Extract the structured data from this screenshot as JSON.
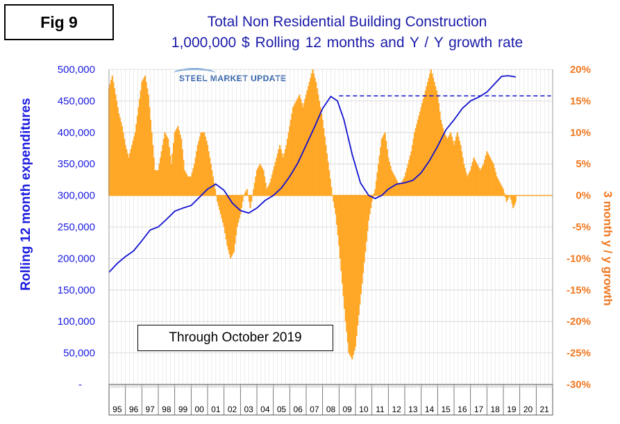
{
  "figure_label": "Fig 9",
  "title": "Total Non Residential Building Construction",
  "subtitle": "1,000,000 $    Rolling 12 months and Y / Y growth rate",
  "logo_text": "STEEL MARKET UPDATE",
  "annotation": "Through October 2019",
  "colors": {
    "line": "#1010d0",
    "bars": "#ffa726",
    "left_axis": "#1a1ae0",
    "right_axis": "#f07820"
  },
  "chart_data": {
    "type": "bar+line",
    "xlabel": "",
    "ylabel_left": "Rolling 12 month expenditures",
    "ylabel_right": "3 month y / y growth",
    "ylim_left": [
      0,
      500000
    ],
    "ylim_right": [
      -30,
      20
    ],
    "left_ticks": [
      "-",
      "50,000",
      "100,000",
      "150,000",
      "200,000",
      "250,000",
      "300,000",
      "350,000",
      "400,000",
      "450,000",
      "500,000"
    ],
    "right_ticks": [
      "-30%",
      "-25%",
      "-20%",
      "-15%",
      "-10%",
      "-5%",
      "0%",
      "5%",
      "10%",
      "15%",
      "20%"
    ],
    "x_categories": [
      "95",
      "96",
      "97",
      "98",
      "99",
      "00",
      "01",
      "02",
      "03",
      "04",
      "05",
      "06",
      "07",
      "08",
      "09",
      "10",
      "11",
      "12",
      "13",
      "14",
      "15",
      "16",
      "17",
      "18",
      "19",
      "20",
      "21"
    ],
    "grid": true,
    "reference_line": {
      "y": 458000,
      "from_year": 2009.0,
      "to_year": 2021.9,
      "style": "dashed"
    },
    "line_series": {
      "name": "Rolling 12 month expenditures",
      "points": [
        [
          1995.0,
          178000
        ],
        [
          1995.5,
          192000
        ],
        [
          1996.0,
          203000
        ],
        [
          1996.5,
          212000
        ],
        [
          1997.0,
          228000
        ],
        [
          1997.5,
          245000
        ],
        [
          1998.0,
          250000
        ],
        [
          1998.5,
          262000
        ],
        [
          1999.0,
          275000
        ],
        [
          1999.5,
          280000
        ],
        [
          2000.0,
          284000
        ],
        [
          2000.5,
          297000
        ],
        [
          2001.0,
          310000
        ],
        [
          2001.5,
          318000
        ],
        [
          2002.0,
          308000
        ],
        [
          2002.5,
          288000
        ],
        [
          2003.0,
          276000
        ],
        [
          2003.5,
          272000
        ],
        [
          2004.0,
          280000
        ],
        [
          2004.5,
          292000
        ],
        [
          2005.0,
          300000
        ],
        [
          2005.5,
          312000
        ],
        [
          2006.0,
          330000
        ],
        [
          2006.5,
          352000
        ],
        [
          2007.0,
          380000
        ],
        [
          2007.5,
          408000
        ],
        [
          2008.0,
          438000
        ],
        [
          2008.5,
          457000
        ],
        [
          2008.9,
          450000
        ],
        [
          2009.3,
          420000
        ],
        [
          2009.8,
          365000
        ],
        [
          2010.3,
          320000
        ],
        [
          2010.8,
          300000
        ],
        [
          2011.2,
          295000
        ],
        [
          2011.6,
          300000
        ],
        [
          2012.0,
          310000
        ],
        [
          2012.5,
          318000
        ],
        [
          2013.0,
          320000
        ],
        [
          2013.5,
          324000
        ],
        [
          2014.0,
          336000
        ],
        [
          2014.5,
          355000
        ],
        [
          2015.0,
          378000
        ],
        [
          2015.5,
          404000
        ],
        [
          2016.0,
          420000
        ],
        [
          2016.5,
          438000
        ],
        [
          2017.0,
          450000
        ],
        [
          2017.5,
          456000
        ],
        [
          2018.0,
          464000
        ],
        [
          2018.5,
          478000
        ],
        [
          2018.9,
          489000
        ],
        [
          2019.3,
          490000
        ],
        [
          2019.75,
          488000
        ]
      ]
    },
    "bar_series": {
      "name": "3 month y / y growth",
      "points": [
        [
          1995.0,
          17
        ],
        [
          1995.2,
          19
        ],
        [
          1995.4,
          16
        ],
        [
          1995.6,
          13
        ],
        [
          1995.8,
          11
        ],
        [
          1996.0,
          8
        ],
        [
          1996.2,
          6
        ],
        [
          1996.4,
          8
        ],
        [
          1996.6,
          10
        ],
        [
          1996.8,
          14
        ],
        [
          1997.0,
          18
        ],
        [
          1997.2,
          19
        ],
        [
          1997.4,
          16
        ],
        [
          1997.6,
          10
        ],
        [
          1997.8,
          4
        ],
        [
          1998.0,
          4
        ],
        [
          1998.2,
          7
        ],
        [
          1998.4,
          10
        ],
        [
          1998.6,
          9
        ],
        [
          1998.8,
          5
        ],
        [
          1999.0,
          10
        ],
        [
          1999.2,
          11
        ],
        [
          1999.4,
          9
        ],
        [
          1999.6,
          4
        ],
        [
          1999.8,
          3
        ],
        [
          2000.0,
          3
        ],
        [
          2000.2,
          5
        ],
        [
          2000.4,
          8
        ],
        [
          2000.6,
          10
        ],
        [
          2000.8,
          10
        ],
        [
          2001.0,
          8
        ],
        [
          2001.2,
          5
        ],
        [
          2001.4,
          2
        ],
        [
          2001.6,
          -1
        ],
        [
          2001.8,
          -3
        ],
        [
          2002.0,
          -5
        ],
        [
          2002.2,
          -8
        ],
        [
          2002.4,
          -10
        ],
        [
          2002.6,
          -9
        ],
        [
          2002.8,
          -5
        ],
        [
          2003.0,
          -3
        ],
        [
          2003.2,
          0
        ],
        [
          2003.4,
          1
        ],
        [
          2003.6,
          -2
        ],
        [
          2003.8,
          1
        ],
        [
          2004.0,
          4
        ],
        [
          2004.2,
          5
        ],
        [
          2004.4,
          4
        ],
        [
          2004.6,
          1
        ],
        [
          2004.8,
          2
        ],
        [
          2005.0,
          4
        ],
        [
          2005.2,
          6
        ],
        [
          2005.4,
          8
        ],
        [
          2005.6,
          6
        ],
        [
          2005.8,
          8
        ],
        [
          2006.0,
          11
        ],
        [
          2006.2,
          14
        ],
        [
          2006.4,
          15
        ],
        [
          2006.6,
          16
        ],
        [
          2006.8,
          14
        ],
        [
          2007.0,
          16
        ],
        [
          2007.2,
          18
        ],
        [
          2007.4,
          20
        ],
        [
          2007.6,
          18
        ],
        [
          2007.8,
          15
        ],
        [
          2008.0,
          12
        ],
        [
          2008.2,
          8
        ],
        [
          2008.4,
          4
        ],
        [
          2008.6,
          0
        ],
        [
          2008.8,
          -3
        ],
        [
          2009.0,
          -8
        ],
        [
          2009.2,
          -14
        ],
        [
          2009.4,
          -20
        ],
        [
          2009.6,
          -25
        ],
        [
          2009.8,
          -26
        ],
        [
          2010.0,
          -24
        ],
        [
          2010.2,
          -19
        ],
        [
          2010.4,
          -14
        ],
        [
          2010.6,
          -9
        ],
        [
          2010.8,
          -4
        ],
        [
          2011.0,
          -1
        ],
        [
          2011.2,
          1
        ],
        [
          2011.4,
          5
        ],
        [
          2011.6,
          9
        ],
        [
          2011.8,
          10
        ],
        [
          2012.0,
          6
        ],
        [
          2012.2,
          4
        ],
        [
          2012.4,
          3
        ],
        [
          2012.6,
          2
        ],
        [
          2012.8,
          2
        ],
        [
          2013.0,
          3
        ],
        [
          2013.2,
          5
        ],
        [
          2013.4,
          7
        ],
        [
          2013.6,
          10
        ],
        [
          2013.8,
          12
        ],
        [
          2014.0,
          14
        ],
        [
          2014.2,
          16
        ],
        [
          2014.4,
          18
        ],
        [
          2014.6,
          20
        ],
        [
          2014.8,
          18
        ],
        [
          2015.0,
          16
        ],
        [
          2015.2,
          12
        ],
        [
          2015.4,
          10
        ],
        [
          2015.6,
          9
        ],
        [
          2015.8,
          10
        ],
        [
          2016.0,
          8
        ],
        [
          2016.2,
          10
        ],
        [
          2016.4,
          8
        ],
        [
          2016.6,
          5
        ],
        [
          2016.8,
          3
        ],
        [
          2017.0,
          4
        ],
        [
          2017.2,
          6
        ],
        [
          2017.4,
          5
        ],
        [
          2017.6,
          4
        ],
        [
          2017.8,
          5
        ],
        [
          2018.0,
          7
        ],
        [
          2018.2,
          6
        ],
        [
          2018.4,
          5
        ],
        [
          2018.6,
          3
        ],
        [
          2018.8,
          2
        ],
        [
          2019.0,
          1
        ],
        [
          2019.2,
          -1
        ],
        [
          2019.4,
          0
        ],
        [
          2019.6,
          -2
        ],
        [
          2019.75,
          -1
        ]
      ]
    }
  }
}
